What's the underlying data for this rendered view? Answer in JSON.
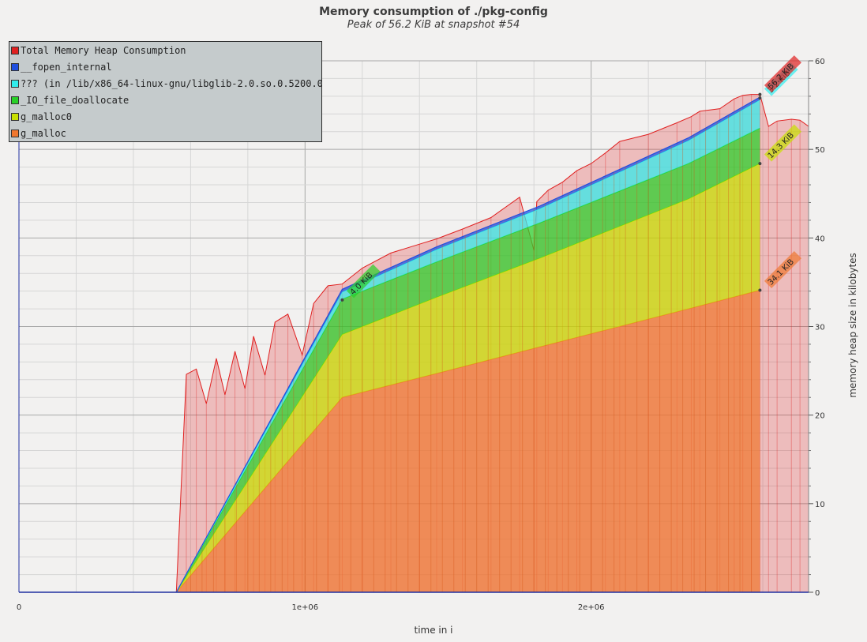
{
  "chart_data": {
    "type": "area",
    "title": "Memory consumption of ./pkg-config",
    "subtitle": "Peak of 56.2 KiB at snapshot #54",
    "xlabel": "time in i",
    "ylabel": "memory heap size in kilobytes",
    "xlim": [
      0,
      2760000
    ],
    "ylim": [
      0,
      60
    ],
    "x_ticks": [
      {
        "value": 0,
        "label": "0"
      },
      {
        "value": 1000000,
        "label": "1e+06"
      },
      {
        "value": 2000000,
        "label": "2e+06"
      }
    ],
    "y_ticks": [
      {
        "value": 0,
        "label": "0"
      },
      {
        "value": 10,
        "label": "10"
      },
      {
        "value": 20,
        "label": "20"
      },
      {
        "value": 30,
        "label": "30"
      },
      {
        "value": 40,
        "label": "40"
      },
      {
        "value": 50,
        "label": "50"
      },
      {
        "value": 60,
        "label": "60"
      }
    ],
    "grid": true,
    "legend_position": "top-left",
    "stacked_x": [
      550000,
      1130000,
      1460000,
      1820000,
      2340000,
      2590000
    ],
    "series": [
      {
        "name": "g_malloc",
        "color": "#f07830",
        "values": [
          0,
          22.0,
          24.7,
          27.7,
          32.0,
          34.1
        ]
      },
      {
        "name": "g_malloc0",
        "color": "#c8e000",
        "values": [
          0,
          7.1,
          8.6,
          10.0,
          12.4,
          14.3
        ]
      },
      {
        "name": "_IO_file_doallocate",
        "color": "#28d028",
        "values": [
          0,
          4.0,
          4.0,
          4.0,
          4.0,
          4.0
        ]
      },
      {
        "name": "??? (in /lib/x86_64-linux-gnu/libglib-2.0.so.0.5200.0",
        "color": "#30ecec",
        "values": [
          0,
          0.8,
          1.4,
          1.6,
          2.6,
          3.2
        ]
      },
      {
        "name": "__fopen_internal",
        "color": "#2050e0",
        "values": [
          0,
          0.3,
          0.3,
          0.3,
          0.3,
          0.3
        ]
      }
    ],
    "total": {
      "name": "Total Memory Heap Consumption",
      "color": "#e02020",
      "x": [
        0,
        550000,
        585000,
        620000,
        655000,
        690000,
        720000,
        755000,
        790000,
        820000,
        860000,
        895000,
        940000,
        990000,
        1030000,
        1080000,
        1130000,
        1200000,
        1300000,
        1400000,
        1460000,
        1550000,
        1650000,
        1750000,
        1800000,
        1810000,
        1850000,
        1900000,
        1950000,
        2000000,
        2050000,
        2100000,
        2200000,
        2300000,
        2350000,
        2380000,
        2450000,
        2500000,
        2530000,
        2560000,
        2590000,
        2620000,
        2650000,
        2700000,
        2730000,
        2760000
      ],
      "y": [
        0,
        0,
        24.6,
        25.2,
        21.3,
        26.4,
        22.3,
        27.2,
        23.0,
        28.9,
        24.5,
        30.5,
        31.4,
        26.8,
        32.6,
        34.6,
        34.8,
        36.6,
        38.3,
        39.3,
        39.9,
        41.0,
        42.3,
        44.6,
        38.6,
        44.1,
        45.4,
        46.3,
        47.6,
        48.4,
        49.6,
        50.9,
        51.7,
        53.0,
        53.7,
        54.3,
        54.6,
        55.7,
        56.1,
        56.2,
        56.2,
        52.6,
        53.2,
        53.4,
        53.3,
        52.6
      ]
    },
    "annotations": [
      {
        "text": "4.0 KiB",
        "x": 1130000,
        "y": 33.0,
        "color": "#28d028"
      },
      {
        "text": "14.3 KiB",
        "x": 2590000,
        "y": 48.4,
        "color": "#c8e000"
      },
      {
        "text": "34.1 KiB",
        "x": 2590000,
        "y": 34.1,
        "color": "#f07830"
      },
      {
        "text": "3.2 KiB",
        "x": 2590000,
        "y": 55.8,
        "color": "#30ecec"
      },
      {
        "text": "56.2 KiB",
        "x": 2590000,
        "y": 56.2,
        "color": "#e02020"
      }
    ]
  }
}
